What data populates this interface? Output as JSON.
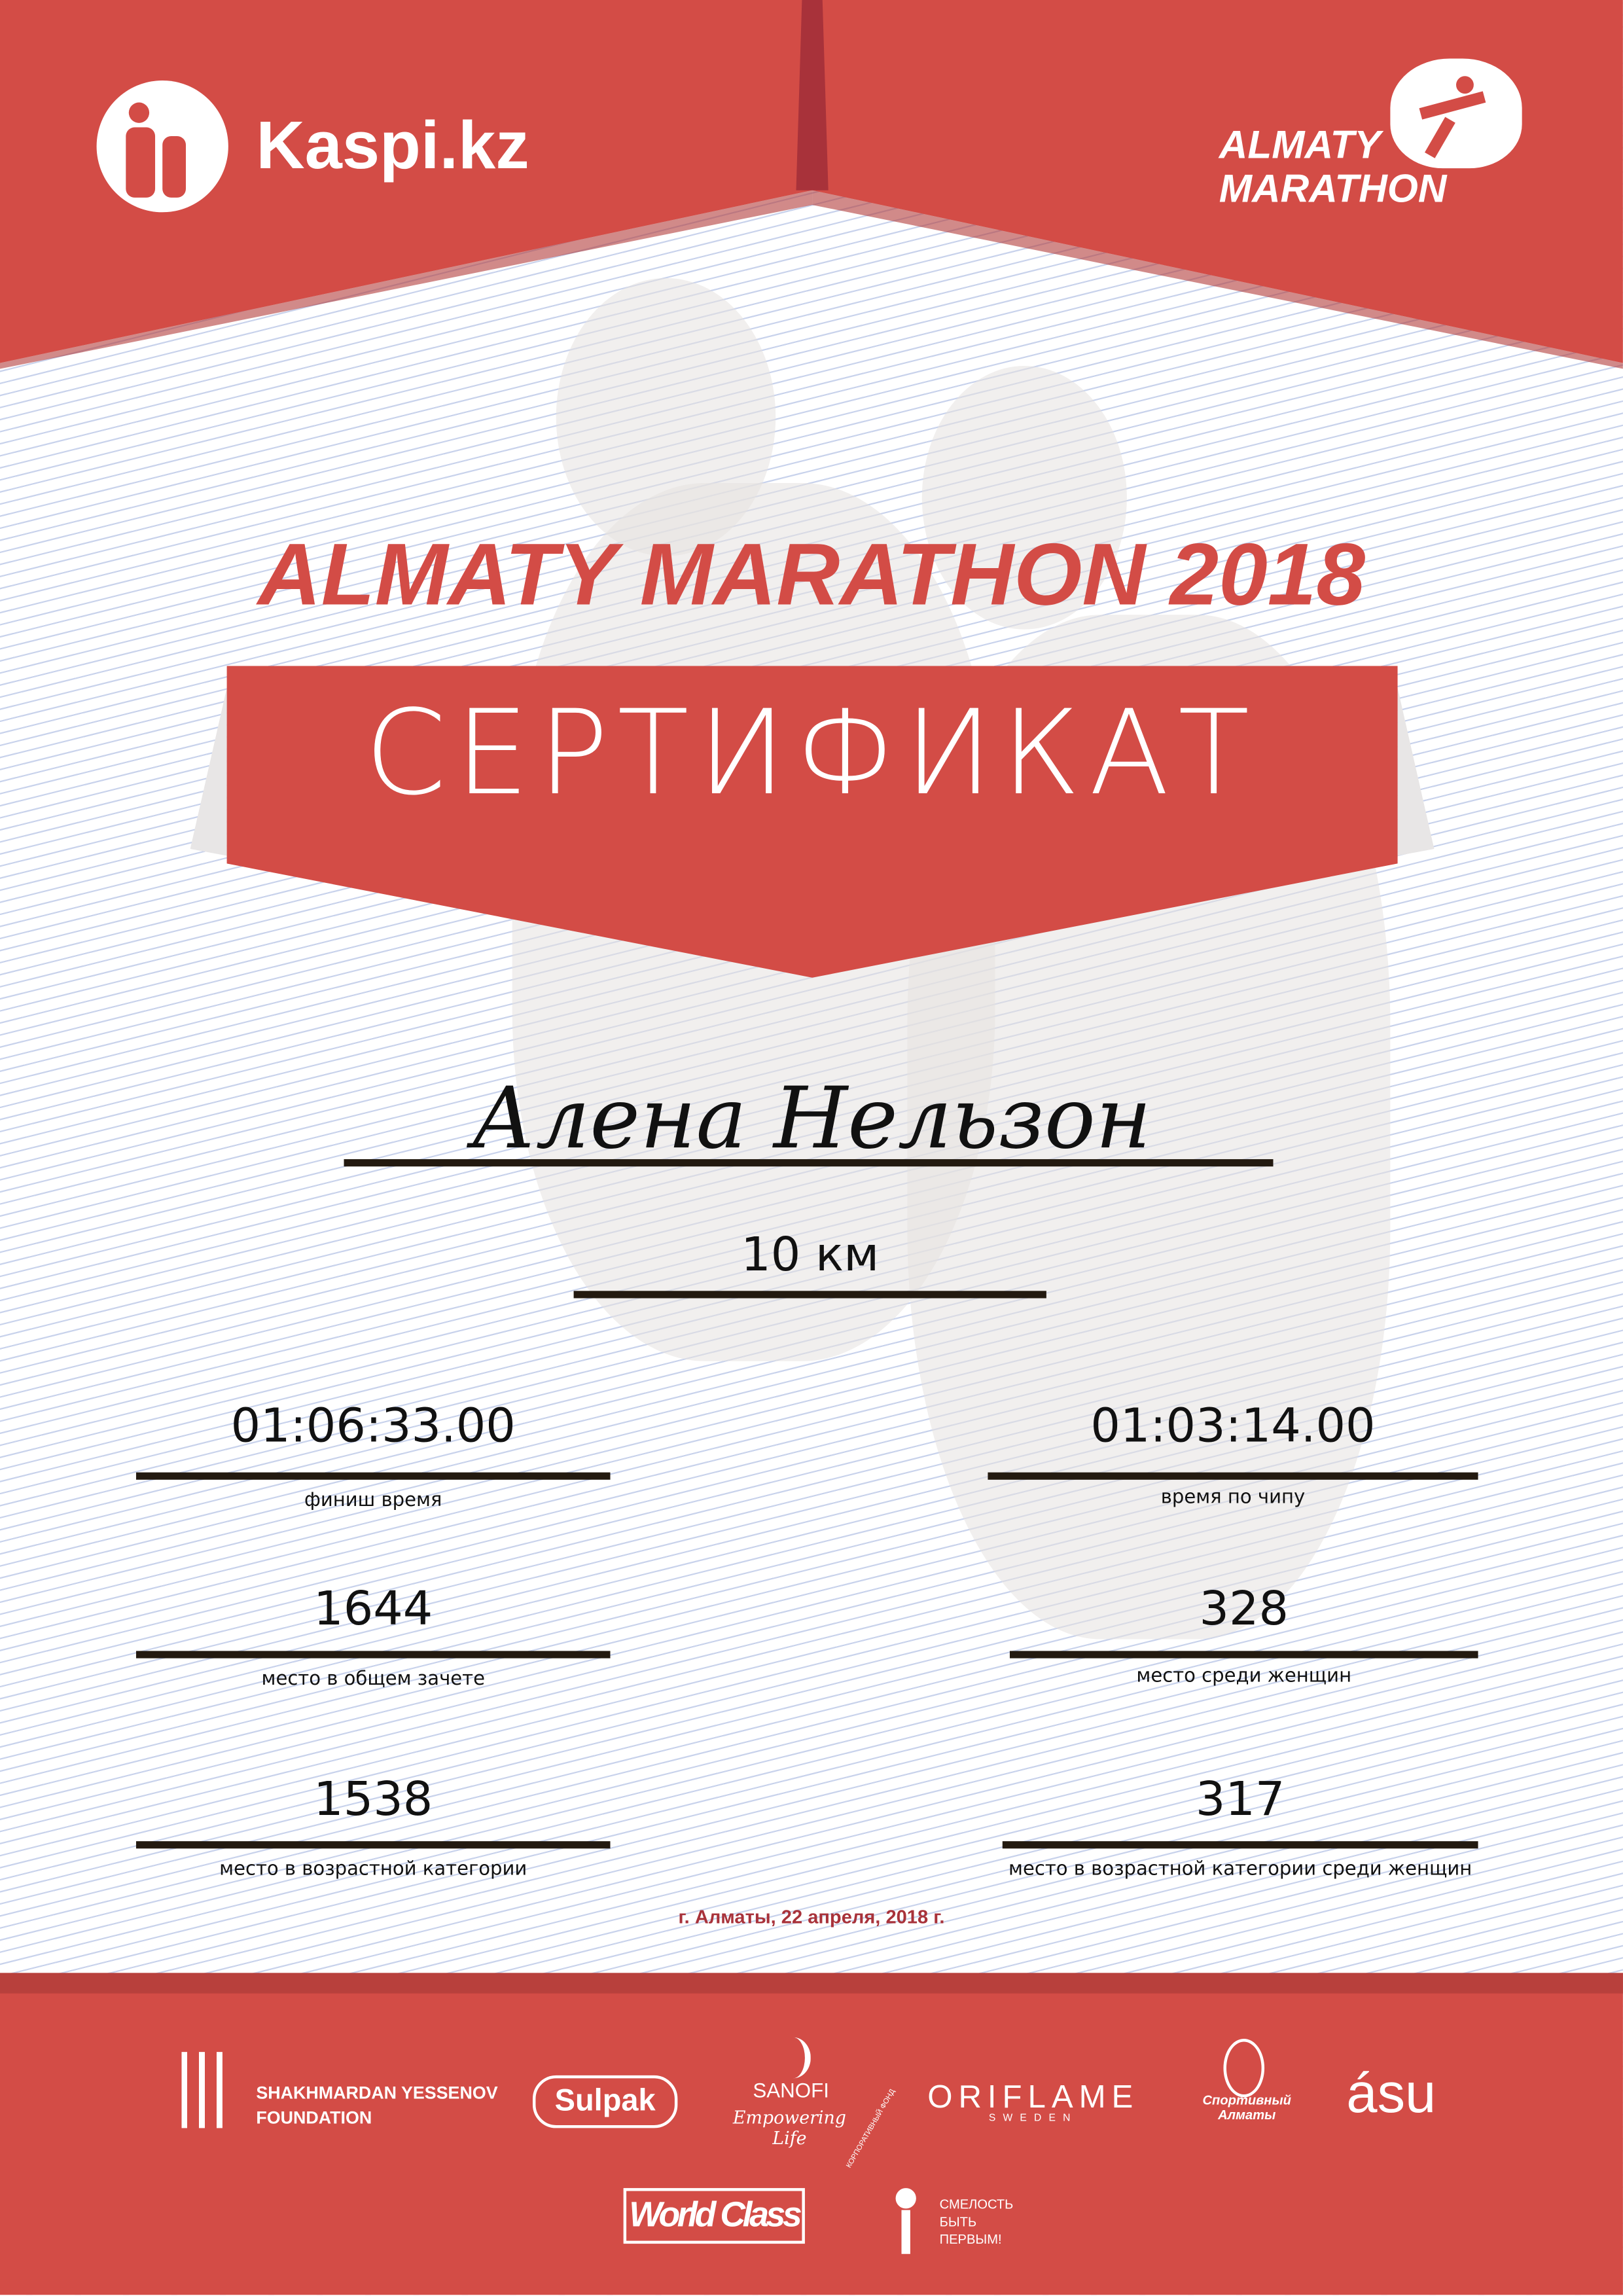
{
  "header": {
    "kaspi_logo": "Kaspi.kz",
    "marathon_logo": [
      "ALMATY",
      "MARATHON"
    ]
  },
  "title": "ALMATY MARATHON 2018",
  "banner": "СЕРТИФИКАТ",
  "participant": {
    "name": "Алена Нельзон",
    "distance": "10 км"
  },
  "results": [
    {
      "value": "01:06:33.00",
      "label": "финиш время"
    },
    {
      "value": "01:03:14.00",
      "label": "время по чипу"
    },
    {
      "value": "1644",
      "label": "место в общем зачете"
    },
    {
      "value": "328",
      "label": "место среди женщин"
    },
    {
      "value": "1538",
      "label": "место в возрастной категории"
    },
    {
      "value": "317",
      "label": "место в возрастной категории среди женщин"
    }
  ],
  "date": "г. Алматы, 22 апреля, 2018 г.",
  "sponsors": {
    "yessenov": [
      "SHAKHMARDAN YESSENOV",
      "FOUNDATION"
    ],
    "sulpak": "Sulpak",
    "sanofi": "SANOFI",
    "sanofi_tag": "Empowering Life",
    "oriflame": "ORIFLAME",
    "oriflame_sub": "SWEDEN",
    "sport_almaty": [
      "Спортивный",
      "Алматы"
    ],
    "asu": "ásu",
    "worldclass": "World Class",
    "fund": [
      "СМЕЛОСТЬ",
      "БЫТЬ",
      "ПЕРВЫМ!"
    ],
    "fund_arc": "КОРПОРАТИВНЫЙ ФОНД"
  },
  "colors": {
    "brand_red": "#d34c46",
    "dark_red": "#a8323a",
    "line": "#231a10"
  }
}
